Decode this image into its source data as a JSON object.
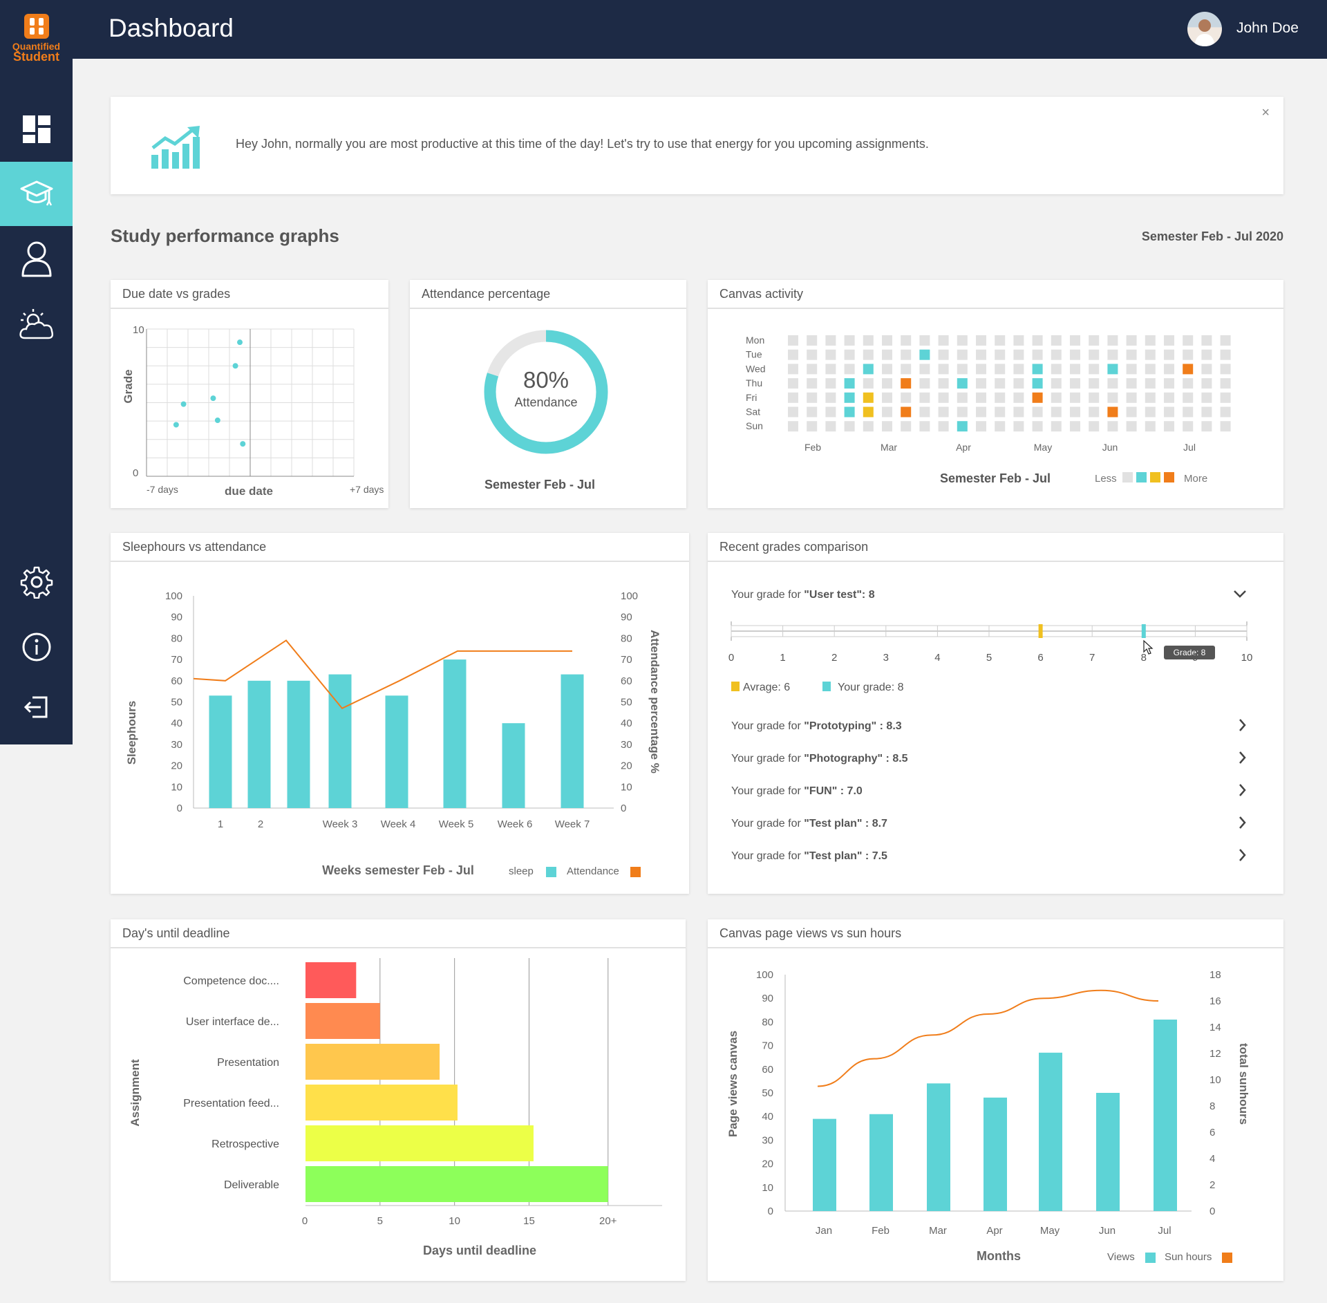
{
  "app": {
    "logo_line1": "Quantified",
    "logo_line2": "Student",
    "page_title": "Dashboard",
    "user_name": "John Doe"
  },
  "nav": [
    {
      "icon": "dashboard-icon"
    },
    {
      "icon": "graduation-cap-icon",
      "active": true
    },
    {
      "icon": "user-icon"
    },
    {
      "icon": "weather-icon"
    },
    {
      "icon": "gear-icon"
    },
    {
      "icon": "info-icon"
    },
    {
      "icon": "logout-icon"
    }
  ],
  "notice": {
    "text": "Hey John, normally you are most productive at this time of the day! Let's try to use that energy for you upcoming assignments.",
    "close": "×",
    "icon": "trend-up-icon"
  },
  "section": {
    "title": "Study performance graphs",
    "semester": "Semester Feb - Jul 2020"
  },
  "colors": {
    "accent": "#5dd3d6",
    "orange": "#f07d1a",
    "yellow": "#f0c020",
    "navy": "#1d2a45",
    "grey": "#e1e1e1"
  },
  "scatter": {
    "title": "Due date vs grades",
    "ylabel": "Grade",
    "xlabel": "due date",
    "y_top": "10",
    "y_bottom": "0",
    "x_left": "-7 days",
    "x_right": "+7 days"
  },
  "attendance": {
    "title": "Attendance percentage",
    "value": "80%",
    "label": "Attendance",
    "caption": "Semester Feb - Jul"
  },
  "activity": {
    "title": "Canvas activity",
    "days": [
      "Mon",
      "Tue",
      "Wed",
      "Thu",
      "Fri",
      "Sat",
      "Sun"
    ],
    "months": [
      "Feb",
      "Mar",
      "Apr",
      "May",
      "Jun",
      "Jul"
    ],
    "caption": "Semester Feb - Jul",
    "less": "Less",
    "more": "More"
  },
  "sleep": {
    "title": "Sleephours vs attendance",
    "ylabel_left": "Sleephours",
    "ylabel_right": "Attendance percentage %",
    "xlabel": "Weeks semester Feb - Jul",
    "legend_sleep": "sleep",
    "legend_att": "Attendance",
    "xticks": [
      "1",
      "2",
      "Week 3",
      "Week 4",
      "Week 5",
      "Week 6",
      "Week 7"
    ],
    "yticks": [
      "0",
      "10",
      "20",
      "30",
      "40",
      "50",
      "60",
      "70",
      "80",
      "90",
      "100"
    ]
  },
  "grades": {
    "title": "Recent grades comparison",
    "open": {
      "prefix": "Your grade for ",
      "name": "\"User test\"",
      "value": ":  8",
      "ticks": [
        "0",
        "1",
        "2",
        "3",
        "4",
        "5",
        "6",
        "7",
        "8",
        "9",
        "10"
      ],
      "tooltip": "Grade: 8",
      "avg_label": "Avrage: 6",
      "your_label": "Your grade: 8",
      "avg": 6,
      "yours": 8
    },
    "items": [
      {
        "prefix": "Your grade for ",
        "name": "\"Prototyping\"",
        "value": " : 8.3"
      },
      {
        "prefix": "Your grade for ",
        "name": "\"Photography\"",
        "value": " : 8.5"
      },
      {
        "prefix": "Your grade for ",
        "name": "\"FUN\"",
        "value": " : 7.0"
      },
      {
        "prefix": "Your grade for ",
        "name": "\"Test plan\"",
        "value": " : 8.7"
      },
      {
        "prefix": "Your grade for ",
        "name": "\"Test plan\"",
        "value": " : 7.5"
      }
    ]
  },
  "deadline": {
    "title": "Day's until deadline",
    "ylabel": "Assignment",
    "xlabel": "Days until deadline",
    "xticks": [
      "0",
      "5",
      "10",
      "15",
      "20+"
    ]
  },
  "views": {
    "title": "Canvas page views vs sun hours",
    "ylabel_left": "Page views canvas",
    "ylabel_right": "total sunhours",
    "xlabel": "Months",
    "legend_views": "Views",
    "legend_sun": "Sun hours",
    "yticks_left": [
      "0",
      "10",
      "20",
      "30",
      "40",
      "50",
      "60",
      "70",
      "80",
      "90",
      "100"
    ],
    "yticks_right": [
      "0",
      "2",
      "4",
      "6",
      "8",
      "10",
      "12",
      "14",
      "16",
      "18"
    ]
  },
  "chart_data": [
    {
      "type": "scatter",
      "title": "Due date vs grades",
      "xlabel": "due date",
      "ylabel": "Grade",
      "ylim": [
        0,
        10
      ],
      "xlim": [
        -7,
        7
      ],
      "points": [
        {
          "x": -5,
          "y": 3.5
        },
        {
          "x": -4.5,
          "y": 4.9
        },
        {
          "x": -2.5,
          "y": 5.3
        },
        {
          "x": -2.2,
          "y": 3.8
        },
        {
          "x": -1.0,
          "y": 7.5
        },
        {
          "x": -0.7,
          "y": 9.1
        },
        {
          "x": -0.5,
          "y": 2.2
        }
      ]
    },
    {
      "type": "pie",
      "title": "Attendance percentage",
      "slices": [
        {
          "label": "Attendance",
          "value": 80
        },
        {
          "label": "Absent",
          "value": 20
        }
      ]
    },
    {
      "type": "heatmap",
      "title": "Canvas activity",
      "rows": [
        "Mon",
        "Tue",
        "Wed",
        "Thu",
        "Fri",
        "Sat",
        "Sun"
      ],
      "cols": 24,
      "cells": [
        {
          "row": 1,
          "col": 7,
          "level": 1
        },
        {
          "row": 2,
          "col": 4,
          "level": 1
        },
        {
          "row": 2,
          "col": 13,
          "level": 1
        },
        {
          "row": 2,
          "col": 17,
          "level": 1
        },
        {
          "row": 2,
          "col": 21,
          "level": 3
        },
        {
          "row": 3,
          "col": 3,
          "level": 1
        },
        {
          "row": 3,
          "col": 6,
          "level": 3
        },
        {
          "row": 3,
          "col": 9,
          "level": 1
        },
        {
          "row": 3,
          "col": 13,
          "level": 1
        },
        {
          "row": 4,
          "col": 3,
          "level": 1
        },
        {
          "row": 4,
          "col": 4,
          "level": 2
        },
        {
          "row": 4,
          "col": 13,
          "level": 3
        },
        {
          "row": 5,
          "col": 3,
          "level": 1
        },
        {
          "row": 5,
          "col": 4,
          "level": 2
        },
        {
          "row": 5,
          "col": 6,
          "level": 3
        },
        {
          "row": 5,
          "col": 17,
          "level": 3
        },
        {
          "row": 6,
          "col": 9,
          "level": 1
        }
      ]
    },
    {
      "type": "bar",
      "title": "Sleephours vs attendance",
      "categories": [
        "1",
        "2",
        "",
        "Week 3",
        "Week 4",
        "Week 5",
        "Week 6",
        "Week 7"
      ],
      "series": [
        {
          "name": "sleep",
          "type": "bar",
          "values": [
            53,
            60,
            60,
            63,
            53,
            70,
            40,
            63
          ]
        },
        {
          "name": "Attendance",
          "type": "line",
          "x": [
            0,
            1,
            3,
            4,
            5.5,
            7,
            8.5,
            10
          ],
          "values": [
            61,
            60,
            79,
            47,
            60,
            74,
            74,
            74
          ]
        }
      ],
      "ylim": [
        0,
        100
      ]
    },
    {
      "type": "bar",
      "title": "Recent grades comparison",
      "orientation": "horizontal",
      "categories": [
        "User test"
      ],
      "series": [
        {
          "name": "Avrage",
          "values": [
            6
          ]
        },
        {
          "name": "Your grade",
          "values": [
            8
          ]
        }
      ],
      "xlim": [
        0,
        10
      ]
    },
    {
      "type": "bar",
      "title": "Day's until deadline",
      "orientation": "horizontal",
      "xlabel": "Days until deadline",
      "ylabel": "Assignment",
      "categories": [
        "Competence doc....",
        "User interface de...",
        "Presentation",
        "Presentation feed...",
        "Retrospective",
        "Deliverable"
      ],
      "values": [
        3.4,
        5,
        9,
        10.2,
        15.3,
        20.3
      ],
      "colors": [
        "#ff5a5a",
        "#ff8a50",
        "#ffc74d",
        "#ffe04a",
        "#ecff47",
        "#8dff5a"
      ],
      "xlim": [
        0,
        23
      ]
    },
    {
      "type": "bar",
      "title": "Canvas page views vs sun hours",
      "categories": [
        "Jan",
        "Feb",
        "Mar",
        "Apr",
        "May",
        "Jun",
        "Jul"
      ],
      "series": [
        {
          "name": "Views",
          "type": "bar",
          "values": [
            39,
            41,
            54,
            48,
            67,
            50,
            81
          ]
        },
        {
          "name": "Sun hours",
          "type": "line",
          "values": [
            9.5,
            11.6,
            13.4,
            15.0,
            16.2,
            16.8,
            16.0
          ]
        }
      ],
      "ylim": [
        0,
        100
      ],
      "y2lim": [
        0,
        18
      ]
    }
  ]
}
